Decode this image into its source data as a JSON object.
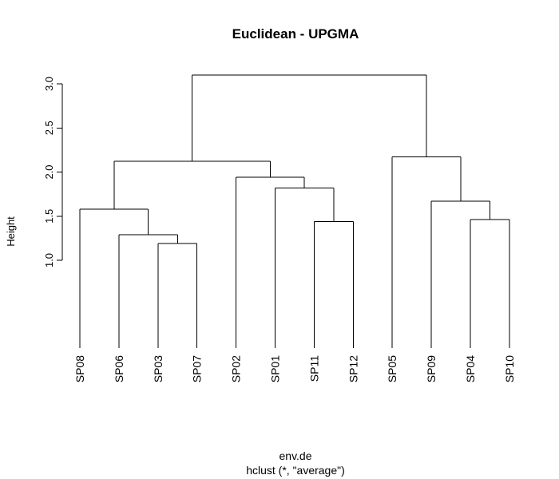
{
  "chart_data": {
    "type": "dendrogram",
    "title": "Euclidean - UPGMA",
    "ylabel": "Height",
    "xlabel": "env.de",
    "sublabel": "hclust (*, \"average\")",
    "ylim": [
      0.0,
      3.1
    ],
    "yticks": [
      1.0,
      1.5,
      2.0,
      2.5,
      3.0
    ],
    "ytick_labels": [
      "1.0",
      "1.5",
      "2.0",
      "2.5",
      "3.0"
    ],
    "leaves": [
      "SP08",
      "SP06",
      "SP03",
      "SP07",
      "SP02",
      "SP01",
      "SP11",
      "SP12",
      "SP05",
      "SP09",
      "SP04",
      "SP10"
    ],
    "merges": [
      {
        "left": "SP03",
        "right": "SP07",
        "height": 1.19
      },
      {
        "left": "SP11",
        "right": "SP12",
        "height": 1.44
      },
      {
        "left": "SP04",
        "right": "SP10",
        "height": 1.46
      },
      {
        "left": "SP06",
        "right": "SP03+SP07",
        "height": 1.29
      },
      {
        "left": "SP08",
        "right": "SP06+SP03+SP07",
        "height": 1.58
      },
      {
        "left": "SP09",
        "right": "SP04+SP10",
        "height": 1.67
      },
      {
        "left": "SP01",
        "right": "SP11+SP12",
        "height": 1.82
      },
      {
        "left": "SP02",
        "right": "SP01+SP11+SP12",
        "height": 1.94
      },
      {
        "left": "SP08+SP06+SP03+SP07",
        "right": "SP02+SP01+SP11+SP12",
        "height": 2.12
      },
      {
        "left": "SP05",
        "right": "SP09+SP04+SP10",
        "height": 2.17
      },
      {
        "left": "SP08..SP12",
        "right": "SP05..SP10",
        "height": 3.1
      }
    ]
  }
}
